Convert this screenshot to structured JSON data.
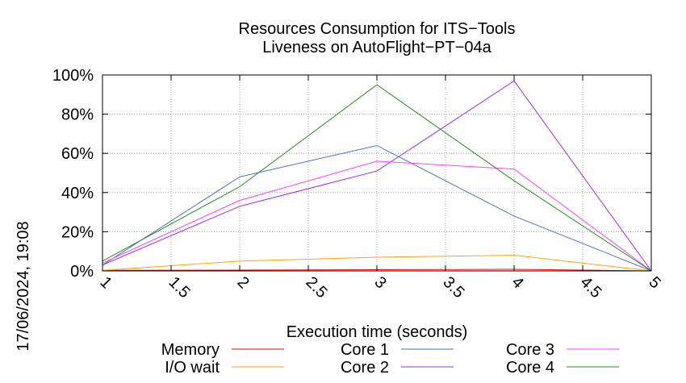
{
  "chart_data": {
    "type": "line",
    "title_lines": [
      "Resources Consumption for ITS−Tools",
      "Liveness on AutoFlight−PT−04a"
    ],
    "xlabel": "Execution time (seconds)",
    "ylabel": "",
    "timestamp": "17/06/2024, 19:08",
    "x": [
      1,
      2,
      3,
      4,
      5
    ],
    "xlim": [
      1,
      5
    ],
    "ylim": [
      0,
      100
    ],
    "x_ticks": [
      {
        "value": 1,
        "label": "1"
      },
      {
        "value": 1.5,
        "label": "1.5"
      },
      {
        "value": 2,
        "label": "2"
      },
      {
        "value": 2.5,
        "label": "2.5"
      },
      {
        "value": 3,
        "label": "3"
      },
      {
        "value": 3.5,
        "label": "3.5"
      },
      {
        "value": 4,
        "label": "4"
      },
      {
        "value": 4.5,
        "label": "4.5"
      },
      {
        "value": 5,
        "label": "5"
      }
    ],
    "y_ticks": [
      {
        "value": 0,
        "label": "0%"
      },
      {
        "value": 20,
        "label": "20%"
      },
      {
        "value": 40,
        "label": "40%"
      },
      {
        "value": 60,
        "label": "60%"
      },
      {
        "value": 80,
        "label": "80%"
      },
      {
        "value": 100,
        "label": "100%"
      }
    ],
    "grid": true,
    "legend_position": "bottom",
    "series": [
      {
        "name": "Memory",
        "color": "#ff0000",
        "values": [
          0.3,
          0.4,
          0.6,
          0.8,
          0
        ]
      },
      {
        "name": "I/O wait",
        "color": "#ffa500",
        "values": [
          0.3,
          5,
          7,
          8,
          0
        ]
      },
      {
        "name": "Core 1",
        "color": "#4a72c8",
        "values": [
          3,
          48,
          64,
          28,
          0
        ]
      },
      {
        "name": "Core 2",
        "color": "#9a2cf2",
        "values": [
          3,
          33,
          51,
          97,
          0
        ]
      },
      {
        "name": "Core 3",
        "color": "#ff40ff",
        "values": [
          4,
          36,
          56,
          52,
          0
        ]
      },
      {
        "name": "Core 4",
        "color": "#228b22",
        "values": [
          5,
          43,
          95,
          46,
          0
        ]
      }
    ]
  }
}
